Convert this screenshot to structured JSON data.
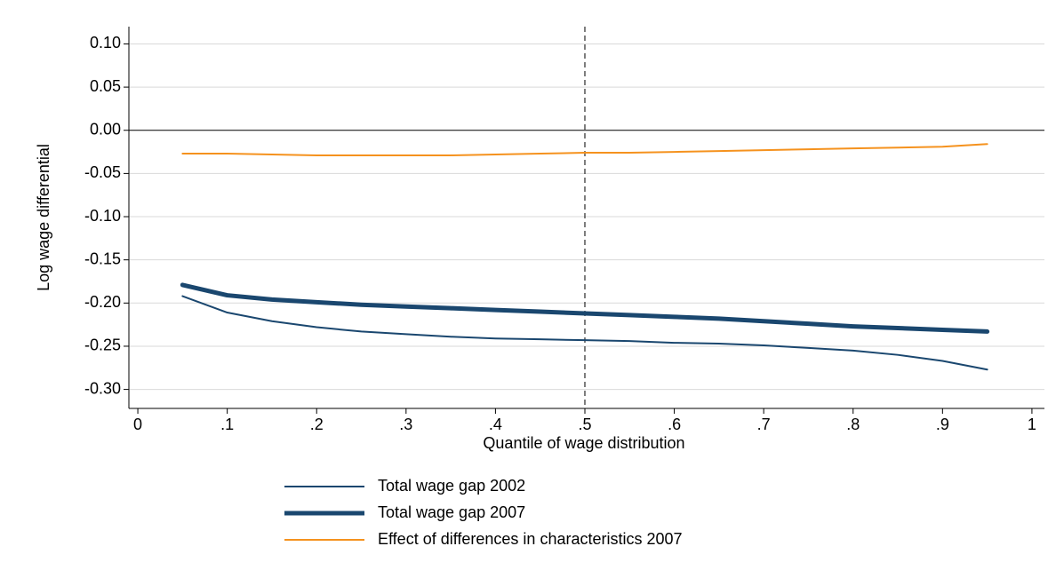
{
  "chart_data": {
    "type": "line",
    "xlabel": "Quantile of wage distribution",
    "ylabel": "Log wage differential",
    "x": [
      0.05,
      0.1,
      0.15,
      0.2,
      0.25,
      0.3,
      0.35,
      0.4,
      0.45,
      0.5,
      0.55,
      0.6,
      0.65,
      0.7,
      0.75,
      0.8,
      0.85,
      0.9,
      0.95
    ],
    "series": [
      {
        "name": "Total wage gap 2002",
        "color": "#1a476f",
        "line_width": 2,
        "values": [
          -0.192,
          -0.211,
          -0.221,
          -0.228,
          -0.233,
          -0.236,
          -0.239,
          -0.241,
          -0.242,
          -0.243,
          -0.244,
          -0.246,
          -0.247,
          -0.249,
          -0.252,
          -0.255,
          -0.26,
          -0.267,
          -0.277
        ]
      },
      {
        "name": "Total wage gap 2007",
        "color": "#1a476f",
        "line_width": 5,
        "values": [
          -0.179,
          -0.191,
          -0.196,
          -0.199,
          -0.202,
          -0.204,
          -0.206,
          -0.208,
          -0.21,
          -0.212,
          -0.214,
          -0.216,
          -0.218,
          -0.221,
          -0.224,
          -0.227,
          -0.229,
          -0.231,
          -0.233
        ]
      },
      {
        "name": "Effect of differences in characteristics 2007",
        "color": "#f5921e",
        "line_width": 2,
        "values": [
          -0.027,
          -0.027,
          -0.028,
          -0.029,
          -0.029,
          -0.029,
          -0.029,
          -0.028,
          -0.027,
          -0.026,
          -0.026,
          -0.025,
          -0.024,
          -0.023,
          -0.022,
          -0.021,
          -0.02,
          -0.019,
          -0.016
        ]
      }
    ],
    "xlim": [
      -0.01,
      1.014
    ],
    "ylim": [
      -0.322,
      0.12
    ],
    "xticks": [
      0,
      {
        "value": 0.1,
        "label": ".1"
      },
      {
        "value": 0.2,
        "label": ".2"
      },
      {
        "value": 0.3,
        "label": ".3"
      },
      {
        "value": 0.4,
        "label": ".4"
      },
      {
        "value": 0.5,
        "label": ".5"
      },
      {
        "value": 0.6,
        "label": ".6"
      },
      {
        "value": 0.7,
        "label": ".7"
      },
      {
        "value": 0.8,
        "label": ".8"
      },
      {
        "value": 0.9,
        "label": ".9"
      },
      1
    ],
    "yticks": [
      {
        "value": 0.1,
        "label": "0.10"
      },
      {
        "value": 0.05,
        "label": "0.05"
      },
      {
        "value": 0,
        "label": "0.00"
      },
      {
        "value": -0.05,
        "label": "-0.05"
      },
      {
        "value": -0.1,
        "label": "-0.10"
      },
      {
        "value": -0.15,
        "label": "-0.15"
      },
      {
        "value": -0.2,
        "label": "-0.20"
      },
      {
        "value": -0.25,
        "label": "-0.25"
      },
      {
        "value": -0.3,
        "label": "-0.30"
      }
    ],
    "grid": true,
    "vline": 0.5,
    "legend": "bottom"
  }
}
